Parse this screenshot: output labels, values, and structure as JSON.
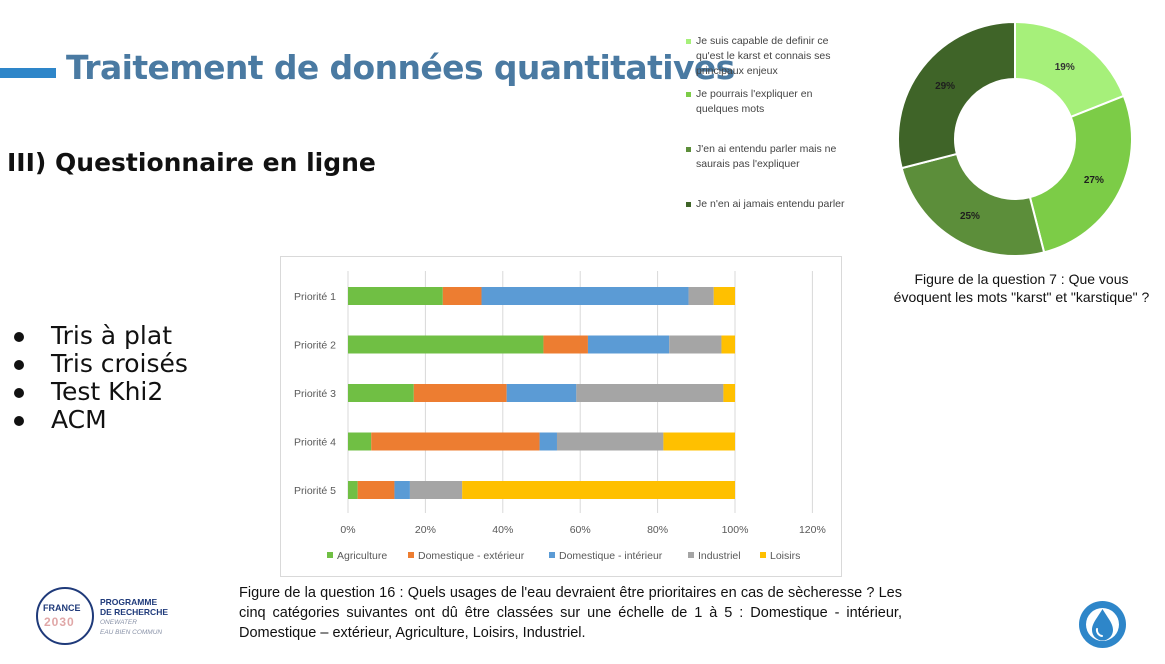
{
  "slide": {
    "title": "Traitement de données quantitatives",
    "section": "III) Questionnaire en ligne",
    "bullets": [
      "Tris à plat",
      "Tris croisés",
      "Test Khi2",
      "ACM"
    ]
  },
  "donut_legend": [
    {
      "label": "Je suis capable de definir ce qu'est le karst et connais ses principaux enjeux",
      "color": "#a6f07a"
    },
    {
      "label": "Je pourrais l'expliquer en quelques mots",
      "color": "#7ccc47"
    },
    {
      "label": "J'en ai entendu parler mais ne saurais pas l'expliquer",
      "color": "#5c8e3a"
    },
    {
      "label": "Je n'en ai jamais entendu parler",
      "color": "#3f6428"
    }
  ],
  "donut_caption": "Figure de la question 7 : Que vous évoquent les mots \"karst\" et \"karstique\" ?",
  "bar_caption": "Figure de la question 16 : Quels usages de l'eau devraient être prioritaires en cas de sècheresse ? Les cinq catégories suivantes ont dû être classées sur une échelle de 1 à 5 : Domestique - intérieur, Domestique – extérieur, Agriculture, Loisirs, Industriel.",
  "logos": {
    "france_top": "FRANCE",
    "france_year": "2030",
    "program_line1": "PROGRAMME",
    "program_line2": "DE RECHERCHE",
    "program_sub1": "ONEWATER",
    "program_sub2": "EAU BIEN COMMUN"
  },
  "chart_data": [
    {
      "type": "pie",
      "variant": "donut",
      "labels": [
        "Je suis capable de definir ce qu'est le karst et connais ses principaux enjeux",
        "Je pourrais l'expliquer en quelques mots",
        "J'en ai entendu parler mais ne saurais pas l'expliquer",
        "Je n'en ai jamais entendu parler"
      ],
      "values": [
        19,
        27,
        25,
        29
      ],
      "value_labels": [
        "19%",
        "27%",
        "25%",
        "29%"
      ],
      "colors": [
        "#a6f07a",
        "#7ccc47",
        "#5c8e3a",
        "#3f6428"
      ],
      "legend_position": "left"
    },
    {
      "type": "bar",
      "orientation": "horizontal",
      "stacked": true,
      "categories": [
        "Priorité 1",
        "Priorité 2",
        "Priorité 3",
        "Priorité 4",
        "Priorité 5"
      ],
      "series": [
        {
          "name": "Agriculture",
          "color": "#70bf44",
          "values": [
            24.5,
            50.5,
            17,
            6,
            2.5
          ]
        },
        {
          "name": "Domestique - extérieur",
          "color": "#ed7d31",
          "values": [
            10,
            11.5,
            24,
            43.5,
            9.5
          ]
        },
        {
          "name": "Domestique - intérieur",
          "color": "#5b9bd5",
          "values": [
            53.5,
            21,
            18,
            4.5,
            4
          ]
        },
        {
          "name": "Industriel",
          "color": "#a5a5a5",
          "values": [
            6.5,
            13.5,
            38,
            27.5,
            13.5
          ]
        },
        {
          "name": "Loisirs",
          "color": "#ffc000",
          "values": [
            5.5,
            3.5,
            3,
            18.5,
            70.5
          ]
        }
      ],
      "xlim": [
        0,
        120
      ],
      "x_ticks": [
        "0%",
        "20%",
        "40%",
        "60%",
        "80%",
        "100%",
        "120%"
      ],
      "grid": true,
      "legend_position": "bottom"
    }
  ]
}
